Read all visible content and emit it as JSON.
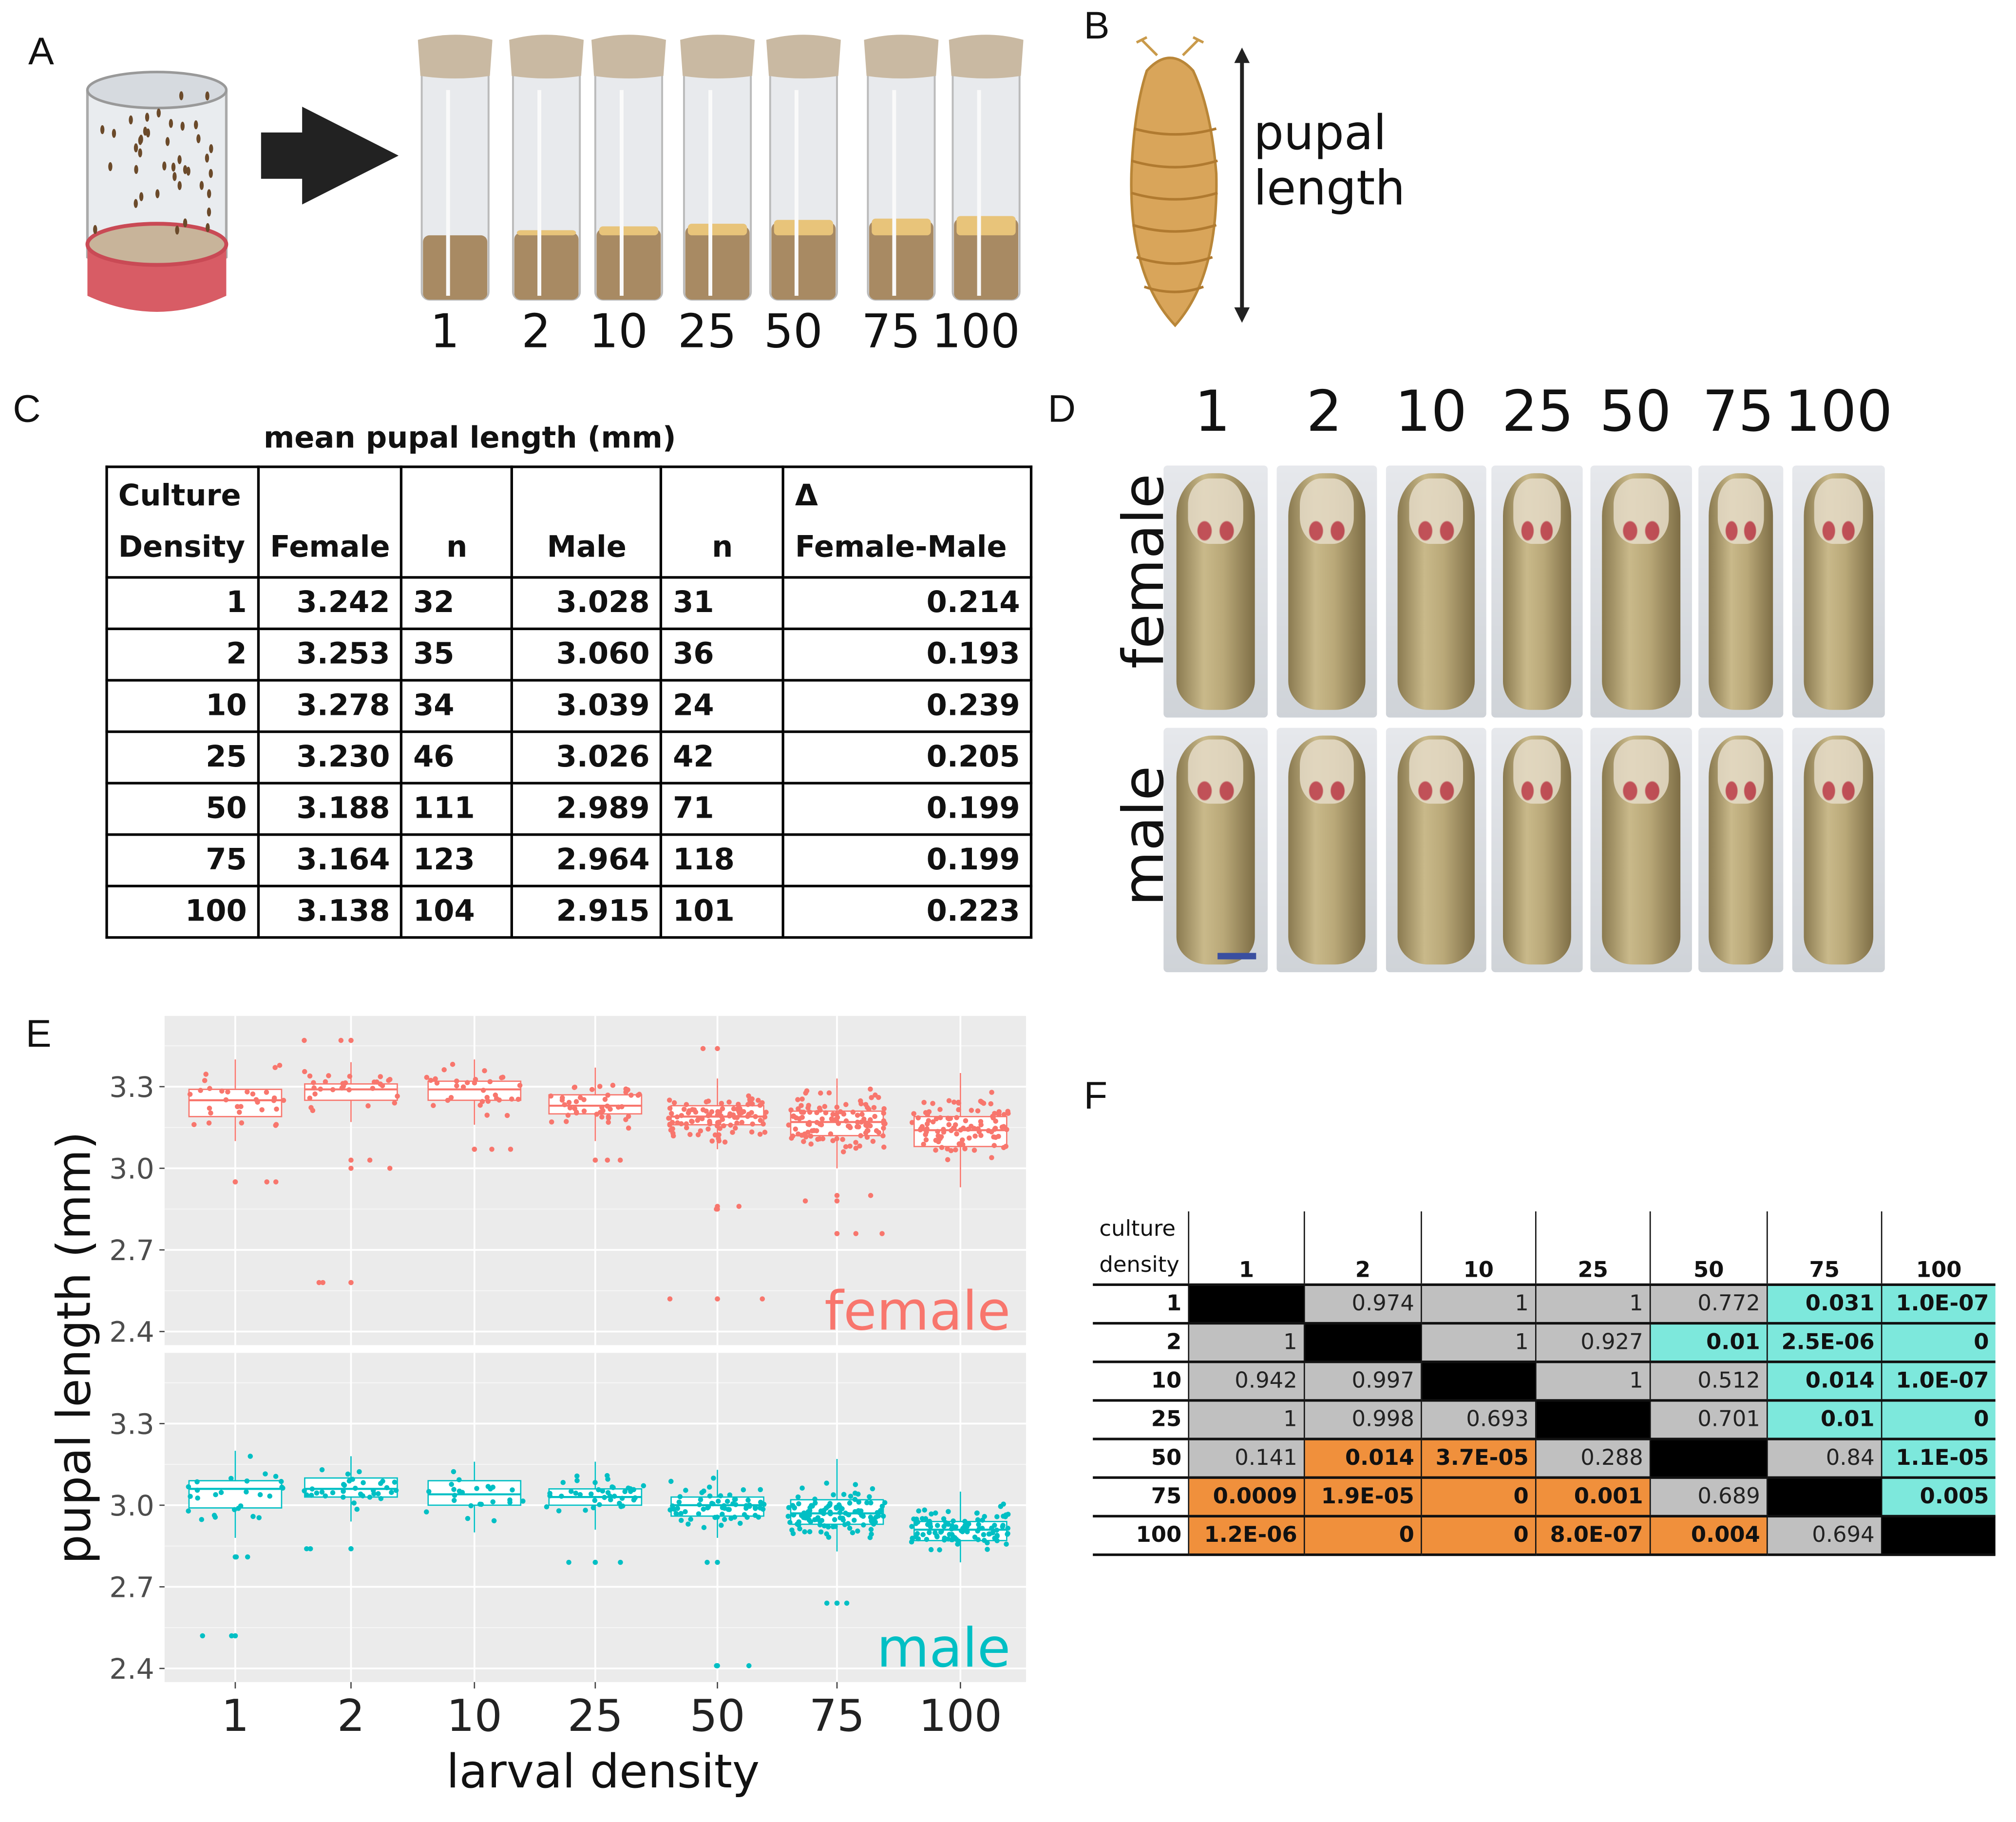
{
  "panel_labels": {
    "a": "A",
    "b": "B",
    "c": "C",
    "d": "D",
    "e": "E",
    "f": "F"
  },
  "panel_a": {
    "vial_labels": [
      "1",
      "2",
      "10",
      "25",
      "50",
      "75",
      "100"
    ],
    "icons": [
      "fly-cage-icon",
      "arrow-right-icon",
      "vial-icon"
    ]
  },
  "panel_b": {
    "label_line1": "pupal",
    "label_line2": "length",
    "icons": [
      "pupa-icon",
      "double-arrow-icon"
    ]
  },
  "panel_c": {
    "title": "mean pupal length (mm)",
    "headers": {
      "density_1": "Culture",
      "density_2": "Density",
      "female": "Female",
      "n1": "n",
      "male": "Male",
      "n2": "n",
      "delta_1": "Δ",
      "delta_2": "Female-Male"
    },
    "rows": [
      [
        "1",
        "3.242",
        "32",
        "3.028",
        "31",
        "0.214"
      ],
      [
        "2",
        "3.253",
        "35",
        "3.060",
        "36",
        "0.193"
      ],
      [
        "10",
        "3.278",
        "34",
        "3.039",
        "24",
        "0.239"
      ],
      [
        "25",
        "3.230",
        "46",
        "3.026",
        "42",
        "0.205"
      ],
      [
        "50",
        "3.188",
        "111",
        "2.989",
        "71",
        "0.199"
      ],
      [
        "75",
        "3.164",
        "123",
        "2.964",
        "118",
        "0.199"
      ],
      [
        "100",
        "3.138",
        "104",
        "2.915",
        "101",
        "0.223"
      ]
    ]
  },
  "panel_d": {
    "column_labels": [
      "1",
      "2",
      "10",
      "25",
      "50",
      "75",
      "100"
    ],
    "row_labels": [
      "female",
      "male"
    ],
    "scale_bar_color": "#3a4fa0"
  },
  "chart_data": {
    "type": "boxplot",
    "xlabel": "larval density",
    "ylabel": "pupal length (mm)",
    "categories": [
      "1",
      "2",
      "10",
      "25",
      "50",
      "75",
      "100"
    ],
    "yticks": [
      2.4,
      2.7,
      3.0,
      3.3
    ],
    "ylim": [
      2.35,
      3.56
    ],
    "grid": true,
    "facets": [
      {
        "name": "female",
        "color": "#F8766D",
        "boxes": [
          {
            "q1": 3.19,
            "median": 3.25,
            "q3": 3.29,
            "low": 3.1,
            "high": 3.4,
            "outliers": [
              2.95,
              2.95
            ]
          },
          {
            "q1": 3.25,
            "median": 3.29,
            "q3": 3.31,
            "low": 3.17,
            "high": 3.39,
            "outliers": [
              3.47,
              3.47,
              3.03,
              3.0,
              2.58,
              2.58
            ]
          },
          {
            "q1": 3.25,
            "median": 3.29,
            "q3": 3.32,
            "low": 3.16,
            "high": 3.4,
            "outliers": [
              3.07,
              3.07
            ]
          },
          {
            "q1": 3.2,
            "median": 3.23,
            "q3": 3.27,
            "low": 3.1,
            "high": 3.37,
            "outliers": [
              3.03,
              3.03
            ]
          },
          {
            "q1": 3.16,
            "median": 3.19,
            "q3": 3.23,
            "low": 3.07,
            "high": 3.33,
            "outliers": [
              3.44,
              2.86,
              2.85,
              2.52,
              2.52
            ]
          },
          {
            "q1": 3.12,
            "median": 3.17,
            "q3": 3.21,
            "low": 3.0,
            "high": 3.33,
            "outliers": [
              2.9,
              2.88,
              2.76,
              2.76
            ]
          },
          {
            "q1": 3.08,
            "median": 3.14,
            "q3": 3.19,
            "low": 2.93,
            "high": 3.35,
            "outliers": []
          }
        ]
      },
      {
        "name": "male",
        "color": "#00BFC4",
        "boxes": [
          {
            "q1": 2.99,
            "median": 3.06,
            "q3": 3.09,
            "low": 2.88,
            "high": 3.2,
            "outliers": [
              2.81,
              2.81,
              2.52,
              2.52
            ]
          },
          {
            "q1": 3.03,
            "median": 3.06,
            "q3": 3.1,
            "low": 2.94,
            "high": 3.18,
            "outliers": [
              2.84,
              2.84
            ]
          },
          {
            "q1": 3.0,
            "median": 3.04,
            "q3": 3.09,
            "low": 2.9,
            "high": 3.16,
            "outliers": []
          },
          {
            "q1": 3.0,
            "median": 3.03,
            "q3": 3.06,
            "low": 2.91,
            "high": 3.16,
            "outliers": [
              2.79,
              2.79
            ]
          },
          {
            "q1": 2.96,
            "median": 3.0,
            "q3": 3.03,
            "low": 2.88,
            "high": 3.13,
            "outliers": [
              2.79,
              2.41,
              2.41
            ]
          },
          {
            "q1": 2.93,
            "median": 2.97,
            "q3": 3.02,
            "low": 2.83,
            "high": 3.17,
            "outliers": [
              2.64,
              2.64
            ]
          },
          {
            "q1": 2.87,
            "median": 2.91,
            "q3": 2.94,
            "low": 2.79,
            "high": 3.05,
            "outliers": []
          }
        ]
      }
    ],
    "n": {
      "female": [
        32,
        35,
        34,
        46,
        111,
        123,
        104
      ],
      "male": [
        31,
        36,
        24,
        42,
        71,
        118,
        101
      ]
    }
  },
  "panel_f": {
    "corner_1": "culture",
    "corner_2": "density",
    "col_headers": [
      "1",
      "2",
      "10",
      "25",
      "50",
      "75",
      "100"
    ],
    "rows": [
      {
        "label": "1",
        "cells": [
          [
            "",
            "k"
          ],
          [
            "0.974",
            "g"
          ],
          [
            "1",
            "g"
          ],
          [
            "1",
            "g"
          ],
          [
            "0.772",
            "g"
          ],
          [
            "0.031",
            "t"
          ],
          [
            "1.0E-07",
            "t"
          ]
        ]
      },
      {
        "label": "2",
        "cells": [
          [
            "1",
            "g"
          ],
          [
            "",
            "k"
          ],
          [
            "1",
            "g"
          ],
          [
            "0.927",
            "g"
          ],
          [
            "0.01",
            "t"
          ],
          [
            "2.5E-06",
            "t"
          ],
          [
            "0",
            "t"
          ]
        ]
      },
      {
        "label": "10",
        "cells": [
          [
            "0.942",
            "g"
          ],
          [
            "0.997",
            "g"
          ],
          [
            "",
            "k"
          ],
          [
            "1",
            "g"
          ],
          [
            "0.512",
            "g"
          ],
          [
            "0.014",
            "t"
          ],
          [
            "1.0E-07",
            "t"
          ]
        ]
      },
      {
        "label": "25",
        "cells": [
          [
            "1",
            "g"
          ],
          [
            "0.998",
            "g"
          ],
          [
            "0.693",
            "g"
          ],
          [
            "",
            "k"
          ],
          [
            "0.701",
            "g"
          ],
          [
            "0.01",
            "t"
          ],
          [
            "0",
            "t"
          ]
        ]
      },
      {
        "label": "50",
        "cells": [
          [
            "0.141",
            "g"
          ],
          [
            "0.014",
            "o"
          ],
          [
            "3.7E-05",
            "o"
          ],
          [
            "0.288",
            "g"
          ],
          [
            "",
            "k"
          ],
          [
            "0.84",
            "g"
          ],
          [
            "1.1E-05",
            "t"
          ]
        ]
      },
      {
        "label": "75",
        "cells": [
          [
            "0.0009",
            "o"
          ],
          [
            "1.9E-05",
            "o"
          ],
          [
            "0",
            "o"
          ],
          [
            "0.001",
            "o"
          ],
          [
            "0.689",
            "g"
          ],
          [
            "",
            "k"
          ],
          [
            "0.005",
            "t"
          ]
        ]
      },
      {
        "label": "100",
        "cells": [
          [
            "1.2E-06",
            "o"
          ],
          [
            "0",
            "o"
          ],
          [
            "0",
            "o"
          ],
          [
            "8.0E-07",
            "o"
          ],
          [
            "0.004",
            "o"
          ],
          [
            "0.694",
            "g"
          ],
          [
            "",
            "k"
          ]
        ]
      }
    ],
    "colors": {
      "grey": "#c0c0c0",
      "diagonal": "#000000",
      "teal": "#7de8dc",
      "orange": "#f0903c"
    }
  }
}
